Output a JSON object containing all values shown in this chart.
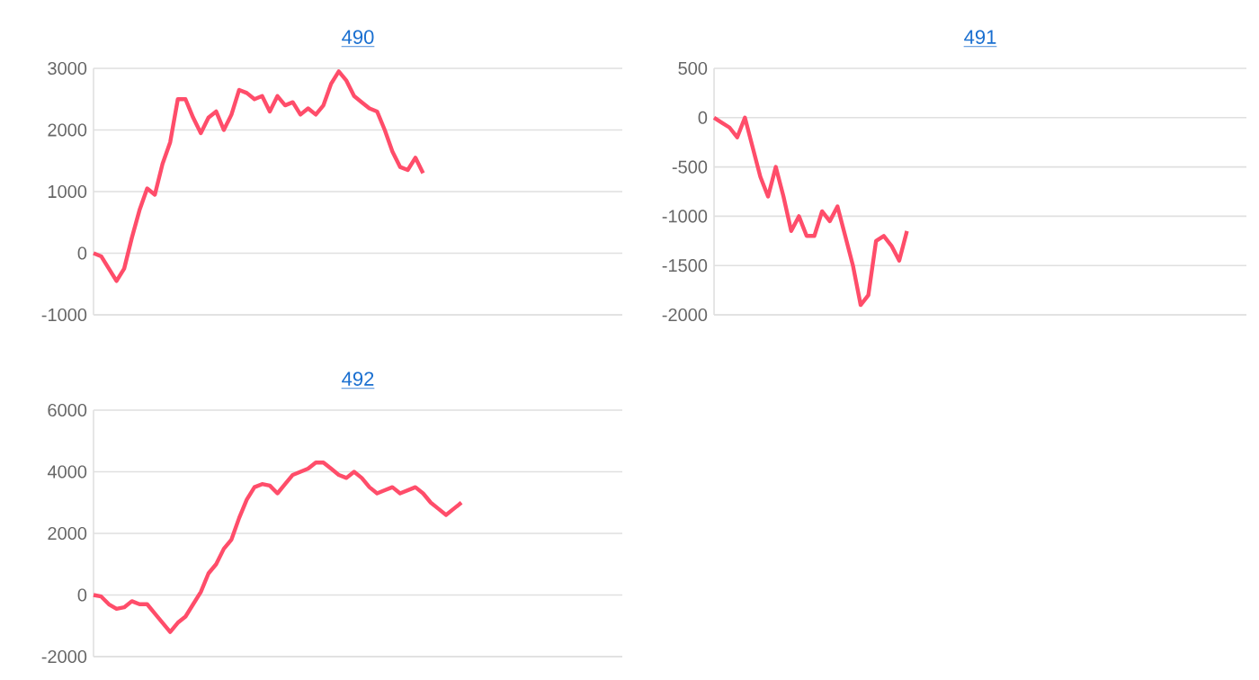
{
  "chart_data": [
    {
      "type": "line",
      "title": "490",
      "categories": [
        null,
        null,
        null,
        null,
        null,
        null,
        null,
        null,
        null,
        null,
        null,
        null,
        null,
        null,
        null,
        null,
        null,
        null,
        null,
        null,
        null,
        null,
        null,
        null,
        null,
        null,
        null,
        null,
        null,
        null,
        null,
        null,
        null,
        null,
        null,
        null,
        null,
        null,
        null,
        null,
        null,
        null,
        null,
        null,
        null,
        null,
        null,
        null,
        null,
        null,
        null,
        null,
        null,
        null,
        null,
        null,
        null,
        null,
        null,
        null,
        null,
        null,
        null,
        null,
        null,
        null,
        null,
        null,
        null,
        null
      ],
      "values": [
        0,
        -50,
        -250,
        -450,
        -250,
        250,
        700,
        1050,
        950,
        1450,
        1800,
        2500,
        2500,
        2200,
        1950,
        2200,
        2300,
        2000,
        2250,
        2650,
        2600,
        2500,
        2550,
        2300,
        2550,
        2400,
        2450,
        2250,
        2350,
        2250,
        2400,
        2750,
        2950,
        2800,
        2550,
        2450,
        2350,
        2300,
        2000,
        1650,
        1400,
        1350,
        1550,
        1300,
        null,
        null,
        null,
        null,
        null,
        null,
        null,
        null,
        null,
        null,
        null,
        null,
        null,
        null,
        null,
        null,
        null,
        null,
        null,
        null,
        null,
        null,
        null,
        null,
        null,
        null
      ],
      "color": "#ff4d6a",
      "ylim": [
        -1000,
        3000
      ],
      "yticks": [
        -1000,
        0,
        1000,
        2000,
        3000
      ],
      "grid": "y",
      "tick_labels": "y"
    },
    {
      "type": "line",
      "title": "491",
      "categories": [
        null,
        null,
        null,
        null,
        null,
        null,
        null,
        null,
        null,
        null,
        null,
        null,
        null,
        null,
        null,
        null,
        null,
        null,
        null,
        null,
        null,
        null,
        null,
        null,
        null,
        null,
        null,
        null,
        null,
        null,
        null,
        null,
        null,
        null,
        null,
        null,
        null,
        null,
        null,
        null,
        null,
        null,
        null,
        null,
        null,
        null,
        null,
        null,
        null,
        null,
        null,
        null,
        null,
        null,
        null,
        null,
        null,
        null,
        null,
        null,
        null,
        null,
        null,
        null,
        null,
        null,
        null,
        null,
        null,
        null
      ],
      "values": [
        0,
        -50,
        -100,
        -200,
        0,
        -300,
        -600,
        -800,
        -500,
        -800,
        -1150,
        -1000,
        -1200,
        -1200,
        -950,
        -1050,
        -900,
        -1200,
        -1500,
        -1900,
        -1800,
        -1250,
        -1200,
        -1300,
        -1450,
        -1150,
        null,
        null,
        null,
        null,
        null,
        null,
        null,
        null,
        null,
        null,
        null,
        null,
        null,
        null,
        null,
        null,
        null,
        null,
        null,
        null,
        null,
        null,
        null,
        null,
        null,
        null,
        null,
        null,
        null,
        null,
        null,
        null,
        null,
        null,
        null,
        null,
        null,
        null,
        null,
        null,
        null,
        null,
        null,
        null
      ],
      "color": "#ff4d6a",
      "ylim": [
        -2000,
        500
      ],
      "yticks": [
        -2000,
        -1500,
        -1000,
        -500,
        0,
        500
      ],
      "grid": "y",
      "tick_labels": "y"
    },
    {
      "type": "line",
      "title": "492",
      "categories": [
        null,
        null,
        null,
        null,
        null,
        null,
        null,
        null,
        null,
        null,
        null,
        null,
        null,
        null,
        null,
        null,
        null,
        null,
        null,
        null,
        null,
        null,
        null,
        null,
        null,
        null,
        null,
        null,
        null,
        null,
        null,
        null,
        null,
        null,
        null,
        null,
        null,
        null,
        null,
        null,
        null,
        null,
        null,
        null,
        null,
        null,
        null,
        null,
        null,
        null,
        null,
        null,
        null,
        null,
        null,
        null,
        null,
        null,
        null,
        null,
        null,
        null,
        null,
        null,
        null,
        null,
        null,
        null,
        null,
        null
      ],
      "values": [
        0,
        -50,
        -300,
        -450,
        -400,
        -200,
        -300,
        -300,
        -600,
        -900,
        -1200,
        -900,
        -700,
        -300,
        100,
        700,
        1000,
        1500,
        1800,
        2500,
        3100,
        3500,
        3600,
        3550,
        3300,
        3600,
        3900,
        4000,
        4100,
        4300,
        4300,
        4100,
        3900,
        3800,
        4000,
        3800,
        3500,
        3300,
        3400,
        3500,
        3300,
        3400,
        3500,
        3300,
        3000,
        2800,
        2600,
        2800,
        3000,
        null,
        null,
        null,
        null,
        null,
        null,
        null,
        null,
        null,
        null,
        null,
        null,
        null,
        null,
        null,
        null,
        null,
        null,
        null,
        null,
        null
      ],
      "color": "#ff4d6a",
      "ylim": [
        -2000,
        6000
      ],
      "yticks": [
        -2000,
        0,
        2000,
        4000,
        6000
      ],
      "grid": "y",
      "tick_labels": "y"
    }
  ]
}
